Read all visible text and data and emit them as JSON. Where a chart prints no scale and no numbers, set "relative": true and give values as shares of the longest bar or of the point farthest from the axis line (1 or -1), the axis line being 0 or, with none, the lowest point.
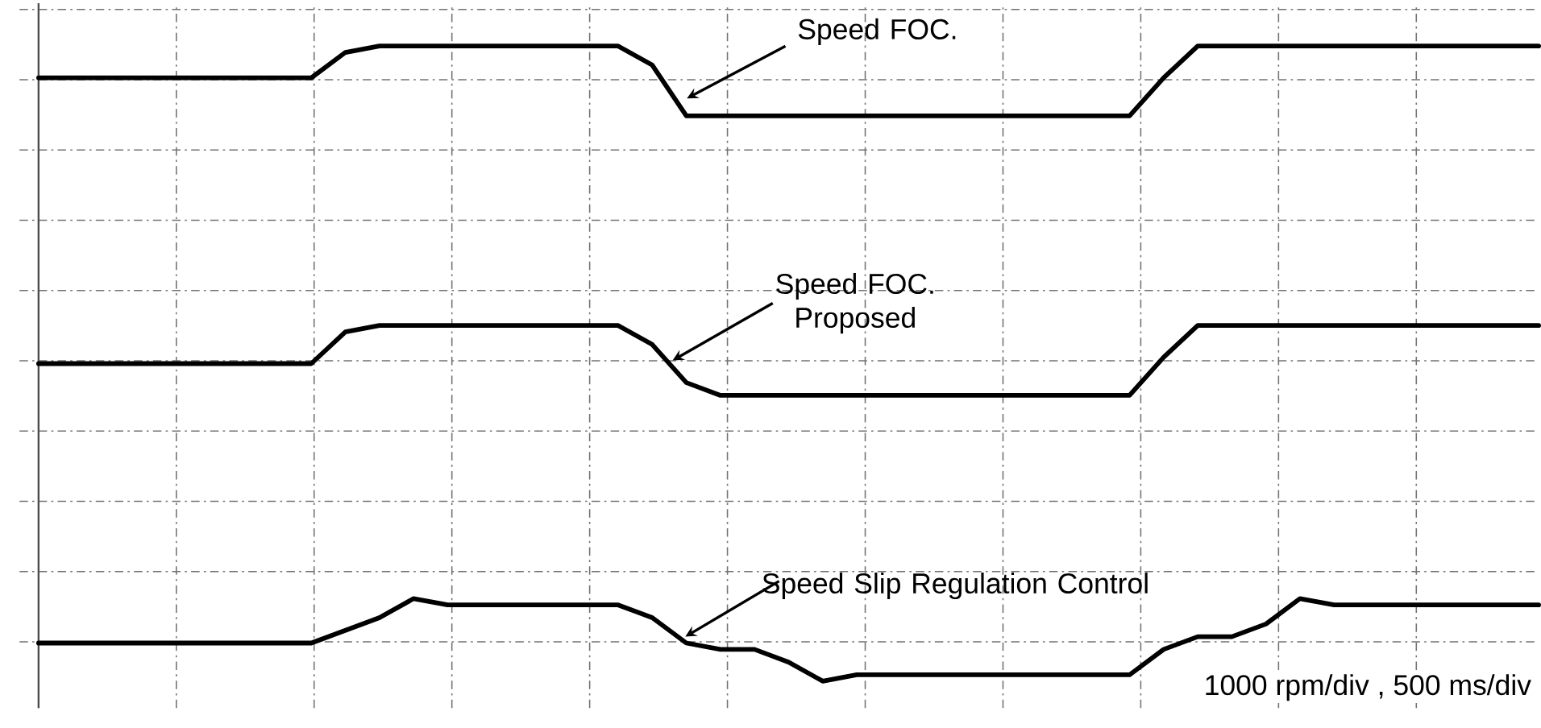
{
  "chart_data": {
    "type": "line",
    "relative": true,
    "grid": true,
    "categories": [
      null,
      null,
      null,
      null,
      null,
      null,
      null,
      null,
      null,
      null,
      null,
      null,
      null,
      null,
      null,
      null,
      null,
      null,
      null,
      null,
      null,
      null,
      null,
      null,
      null,
      null,
      null,
      null,
      null,
      null,
      null,
      null,
      null,
      null,
      null,
      null,
      null,
      null,
      null,
      null,
      null,
      null,
      null,
      null,
      null
    ],
    "series": [
      {
        "name": "Speed FOC.",
        "color": "#000000",
        "values": [
          0.95,
          0.95,
          0.95,
          0.95,
          0.95,
          0.95,
          0.95,
          0.95,
          0.95,
          0.99,
          1,
          1,
          1,
          1,
          1,
          1,
          1,
          1,
          0.97,
          0.89,
          0.89,
          0.89,
          0.89,
          0.89,
          0.89,
          0.89,
          0.89,
          0.89,
          0.89,
          0.89,
          0.89,
          0.89,
          0.89,
          0.95,
          1,
          1,
          1,
          1,
          1,
          1,
          1,
          1,
          1,
          1,
          1
        ]
      },
      {
        "name": "Speed FOC. Proposed",
        "color": "#000000",
        "values": [
          0.5,
          0.5,
          0.5,
          0.5,
          0.5,
          0.5,
          0.5,
          0.5,
          0.5,
          0.55,
          0.56,
          0.56,
          0.56,
          0.56,
          0.56,
          0.56,
          0.56,
          0.56,
          0.53,
          0.47,
          0.45,
          0.45,
          0.45,
          0.45,
          0.45,
          0.45,
          0.45,
          0.45,
          0.45,
          0.45,
          0.45,
          0.45,
          0.45,
          0.51,
          0.56,
          0.56,
          0.56,
          0.56,
          0.56,
          0.56,
          0.56,
          0.56,
          0.56,
          0.56,
          0.56
        ]
      },
      {
        "name": "Speed Slip Regulation Control",
        "color": "#000000",
        "values": [
          0.06,
          0.06,
          0.06,
          0.06,
          0.06,
          0.06,
          0.06,
          0.06,
          0.06,
          0.08,
          0.1,
          0.13,
          0.12,
          0.12,
          0.12,
          0.12,
          0.12,
          0.12,
          0.1,
          0.06,
          0.05,
          0.05,
          0.03,
          0,
          0.01,
          0.01,
          0.01,
          0.01,
          0.01,
          0.01,
          0.01,
          0.01,
          0.01,
          0.05,
          0.07,
          0.07,
          0.09,
          0.13,
          0.12,
          0.12,
          0.12,
          0.12,
          0.12,
          0.12,
          0.12
        ]
      }
    ],
    "annotations": [
      "1000 rpm/div , 500 ms/div"
    ]
  }
}
